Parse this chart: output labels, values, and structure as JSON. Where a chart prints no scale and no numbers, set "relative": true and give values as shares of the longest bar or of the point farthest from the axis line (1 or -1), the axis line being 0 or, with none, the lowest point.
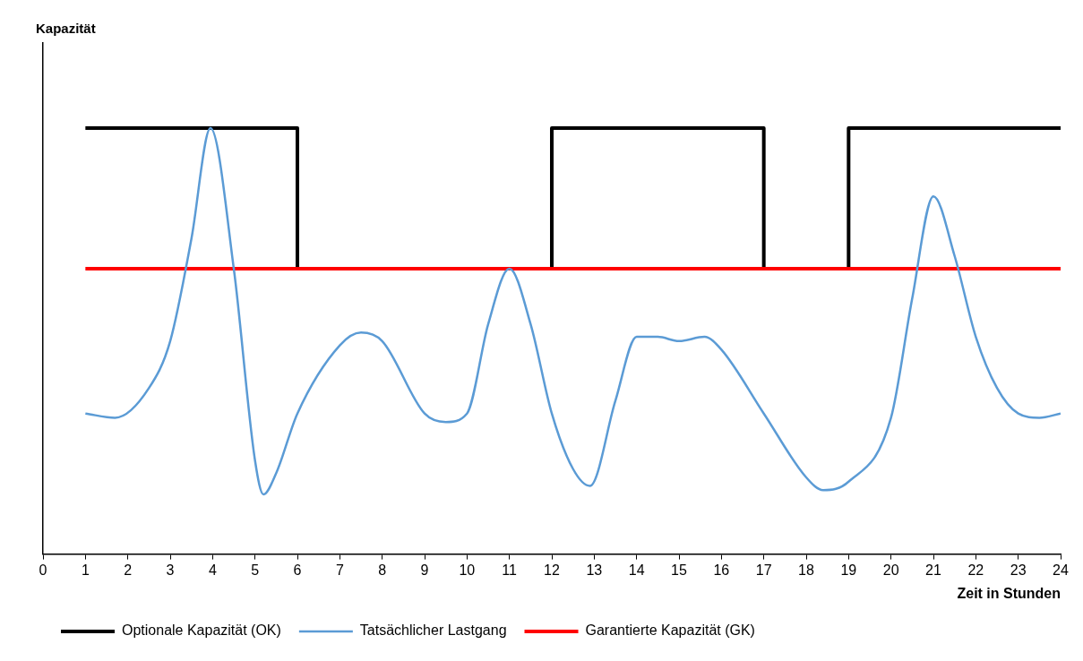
{
  "chart_data": {
    "type": "line",
    "relative": true,
    "annotations": [
      "Kapazität"
    ],
    "xlabel": "Zeit in Stunden",
    "xlim": [
      0,
      24
    ],
    "xticks": [
      0,
      1,
      2,
      3,
      4,
      5,
      6,
      7,
      8,
      9,
      10,
      11,
      12,
      13,
      14,
      15,
      16,
      17,
      18,
      19,
      20,
      21,
      22,
      23,
      24
    ],
    "grid": false,
    "legend": "bottom left",
    "marker": "none",
    "series": [
      {
        "name": "Optionale Kapazität (OK)",
        "type": "step",
        "color": "#000000",
        "x": [
          1,
          6,
          12,
          17,
          19,
          24
        ],
        "values": [
          1,
          0.67,
          1,
          0.67,
          1,
          1
        ]
      },
      {
        "name": "Tatsächlicher Lastgang",
        "type": "line",
        "color": "#5b9bd5",
        "x": [
          1,
          1.7,
          2.5,
          3,
          3.5,
          3.95,
          4.5,
          5,
          5.2,
          5.5,
          6,
          7,
          7.5,
          8,
          9,
          9.5,
          10,
          10.5,
          11,
          11.5,
          12,
          12.5,
          12.9,
          13.5,
          14,
          14.5,
          15,
          15.6,
          16,
          17,
          18,
          18.4,
          19,
          20,
          20.5,
          21,
          21.5,
          22,
          22.5,
          23,
          23.5,
          24
        ],
        "values": [
          0.33,
          0.32,
          0.39,
          0.5,
          0.74,
          1,
          0.67,
          0.22,
          0.14,
          0.19,
          0.33,
          0.49,
          0.52,
          0.5,
          0.33,
          0.31,
          0.33,
          0.54,
          0.67,
          0.54,
          0.33,
          0.2,
          0.16,
          0.36,
          0.51,
          0.51,
          0.5,
          0.51,
          0.48,
          0.33,
          0.18,
          0.15,
          0.17,
          0.32,
          0.6,
          0.84,
          0.7,
          0.51,
          0.39,
          0.33,
          0.32,
          0.33
        ]
      },
      {
        "name": "Garantierte Kapazität (GK)",
        "type": "line",
        "color": "#ff0000",
        "x": [
          1,
          24
        ],
        "values": [
          0.67,
          0.67
        ]
      }
    ]
  }
}
